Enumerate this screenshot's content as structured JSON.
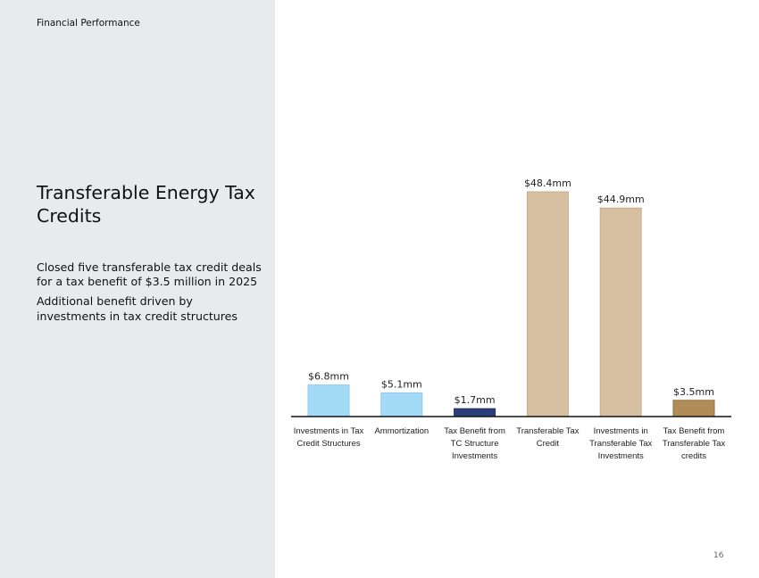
{
  "header": {
    "section": "Financial Performance"
  },
  "title": "Transferable Energy Tax Credits",
  "bullets": [
    "Closed five transferable tax credit deals for a tax benefit of $3.5 million in 2025",
    "Additional benefit driven by investments in tax credit structures"
  ],
  "page_number": "16",
  "chart_data": {
    "type": "bar",
    "categories": [
      [
        "Investments in Tax",
        "Credit Structures"
      ],
      [
        "Ammortization"
      ],
      [
        "Tax Benefit from",
        "TC Structure",
        "Investments"
      ],
      [
        "Transferable Tax",
        "Credit"
      ],
      [
        "Investments in",
        "Transferable Tax",
        "Investments"
      ],
      [
        "Tax Benefit from",
        "Transferable Tax",
        "credits"
      ]
    ],
    "values": [
      6.8,
      5.1,
      1.7,
      48.4,
      44.9,
      3.5
    ],
    "value_labels": [
      "$6.8mm",
      "$5.1mm",
      "$1.7mm",
      "$48.4mm",
      "$44.9mm",
      "$3.5mm"
    ],
    "bar_colors": [
      "#a3dbf7",
      "#a3dbf7",
      "#2c3f7a",
      "#d7c0a2",
      "#d7c0a2",
      "#b08d57"
    ],
    "bar_edge_colors": [
      "#8fcbee",
      "#8fcbee",
      "#1f2f63",
      "#c9ad88",
      "#c9ad88",
      "#93713e"
    ],
    "title": "",
    "xlabel": "",
    "ylabel": "",
    "ylim": [
      0,
      48.4
    ],
    "grid": false,
    "legend": "none"
  }
}
